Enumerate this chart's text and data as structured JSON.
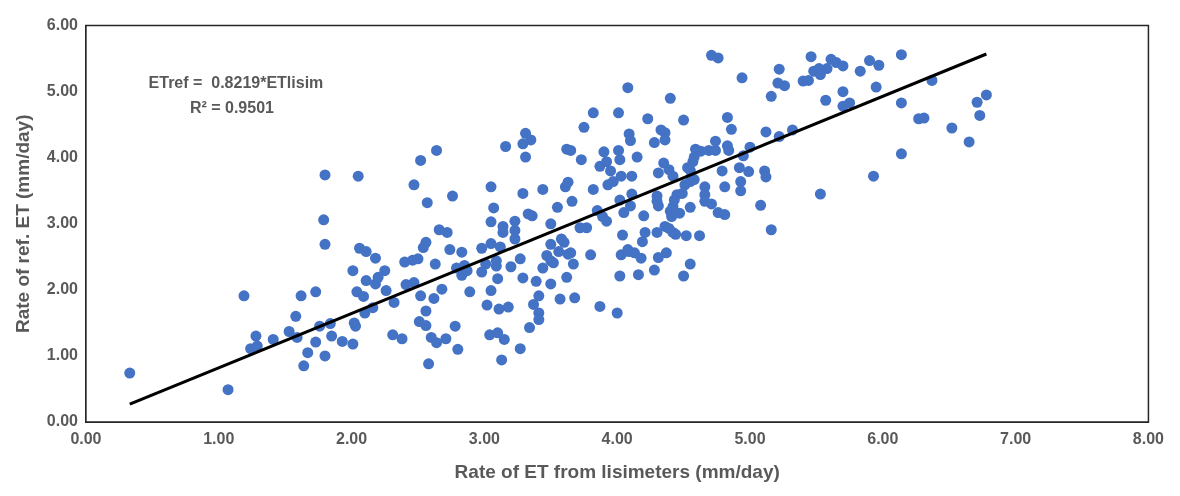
{
  "chart_data": {
    "type": "scatter",
    "xlabel": "Rate of ET from lisimeters (mm/day)",
    "ylabel": "Rate of ref. ET (mm/day)",
    "annotations": [
      "ETref =  0.8219*ETlisim",
      "R² = 0.9501"
    ],
    "xlim": [
      0,
      8
    ],
    "xticks": [
      {
        "value": 0,
        "label": "0.00"
      },
      {
        "value": 1,
        "label": "1.00"
      },
      {
        "value": 2,
        "label": "2.00"
      },
      {
        "value": 3,
        "label": "3.00"
      },
      {
        "value": 4,
        "label": "4.00"
      },
      {
        "value": 5,
        "label": "5.00"
      },
      {
        "value": 6,
        "label": "6.00"
      },
      {
        "value": 7,
        "label": "7.00"
      },
      {
        "value": 8,
        "label": "8.00"
      }
    ],
    "ylim": [
      0,
      6
    ],
    "yticks": [
      {
        "value": 0,
        "label": "0.00"
      },
      {
        "value": 1,
        "label": "1.00"
      },
      {
        "value": 2,
        "label": "2.00"
      },
      {
        "value": 3,
        "label": "3.00"
      },
      {
        "value": 4,
        "label": "4.00"
      },
      {
        "value": 5,
        "label": "5.00"
      },
      {
        "value": 6,
        "label": "6.00"
      }
    ],
    "grid": false,
    "series": [
      {
        "type": "scatter",
        "marker": "circle",
        "color": "#4472c4",
        "x": [
          0.33,
          1.07,
          1.19,
          1.24,
          1.29,
          1.28,
          1.41,
          1.53,
          1.58,
          1.59,
          1.62,
          1.64,
          1.67,
          1.73,
          1.73,
          1.76,
          1.8,
          1.8,
          1.79,
          1.8,
          1.84,
          1.85,
          1.93,
          2.01,
          2.01,
          2.02,
          2.03,
          2.04,
          2.05,
          2.06,
          2.09,
          2.1,
          2.11,
          2.11,
          2.16,
          2.18,
          2.18,
          2.2,
          2.25,
          2.26,
          2.31,
          2.32,
          2.38,
          2.4,
          2.41,
          2.47,
          2.47,
          2.46,
          2.5,
          2.52,
          2.52,
          2.56,
          2.51,
          2.56,
          2.57,
          2.58,
          2.6,
          2.64,
          2.64,
          2.66,
          2.56,
          2.54,
          2.63,
          2.62,
          2.68,
          2.76,
          2.72,
          2.74,
          2.79,
          2.83,
          2.83,
          2.85,
          2.87,
          2.89,
          2.78,
          2.8,
          2.71,
          2.98,
          2.98,
          3.01,
          3.05,
          3.05,
          3.07,
          3.05,
          3.09,
          3.09,
          3.1,
          3.05,
          3.02,
          3.11,
          3.18,
          3.04,
          3.1,
          3.15,
          3.13,
          3.14,
          3.14,
          3.12,
          3.16,
          3.23,
          3.23,
          3.23,
          3.2,
          3.27,
          3.29,
          3.27,
          3.29,
          3.29,
          3.31,
          3.31,
          3.35,
          3.33,
          3.36,
          3.39,
          3.41,
          3.37,
          3.41,
          3.41,
          3.34,
          3.44,
          3.44,
          3.5,
          3.47,
          3.5,
          3.52,
          3.5,
          3.5,
          3.55,
          3.56,
          3.58,
          3.6,
          3.57,
          3.62,
          3.63,
          3.65,
          3.67,
          3.68,
          3.61,
          3.63,
          3.62,
          3.65,
          3.66,
          3.72,
          3.77,
          3.73,
          3.75,
          3.82,
          3.82,
          3.8,
          3.85,
          3.89,
          3.92,
          3.87,
          3.87,
          3.9,
          3.92,
          3.95,
          3.93,
          3.97,
          4.01,
          4.0,
          4.01,
          4.02,
          4.02,
          4.03,
          4.05,
          4.04,
          4.02,
          4.03,
          4.08,
          4.09,
          4.13,
          4.08,
          4.09,
          4.1,
          4.11,
          4.11,
          4.1,
          4.15,
          4.16,
          4.18,
          4.19,
          4.21,
          4.2,
          4.23,
          4.28,
          4.28,
          4.31,
          4.31,
          4.3,
          4.3,
          4.31,
          4.3,
          4.33,
          4.36,
          4.36,
          4.4,
          4.35,
          4.39,
          4.42,
          4.36,
          4.39,
          4.42,
          4.44,
          4.37,
          4.4,
          4.41,
          4.42,
          4.43,
          4.45,
          4.47,
          4.49,
          4.5,
          4.5,
          4.52,
          4.55,
          4.55,
          4.53,
          4.55,
          4.57,
          4.58,
          4.51,
          4.55,
          4.58,
          4.59,
          4.63,
          4.62,
          4.66,
          4.66,
          4.66,
          4.71,
          4.69,
          4.74,
          4.74,
          4.71,
          4.76,
          4.76,
          4.81,
          4.79,
          4.81,
          4.83,
          4.86,
          4.83,
          4.84,
          4.92,
          4.93,
          4.93,
          4.94,
          4.95,
          4.99,
          5.0,
          5.08,
          5.11,
          5.12,
          5.12,
          5.16,
          5.16,
          5.21,
          5.26,
          5.22,
          5.22,
          5.32,
          5.46,
          5.4,
          5.44,
          5.48,
          5.52,
          5.53,
          5.58,
          5.57,
          5.53,
          5.61,
          5.65,
          5.7,
          5.7,
          5.7,
          5.75,
          5.83,
          5.9,
          5.97,
          5.95,
          5.93,
          6.14,
          6.14,
          6.14,
          6.27,
          6.31,
          6.37,
          6.52,
          6.65,
          6.71,
          6.73,
          6.78
        ],
        "values": [
          0.74,
          0.49,
          1.91,
          1.11,
          1.15,
          1.3,
          1.25,
          1.37,
          1.6,
          1.28,
          1.91,
          0.85,
          1.05,
          1.21,
          1.97,
          1.45,
          1.0,
          3.74,
          3.06,
          2.69,
          1.49,
          1.3,
          1.22,
          1.18,
          2.29,
          1.5,
          1.45,
          1.97,
          3.72,
          2.63,
          1.9,
          1.65,
          2.58,
          2.14,
          1.73,
          2.48,
          2.09,
          2.19,
          2.29,
          1.99,
          1.32,
          1.81,
          1.26,
          2.42,
          2.08,
          2.11,
          3.59,
          2.45,
          2.47,
          3.96,
          1.91,
          1.68,
          1.52,
          1.46,
          3.32,
          0.88,
          1.28,
          1.2,
          4.11,
          2.91,
          2.72,
          2.64,
          2.39,
          1.87,
          2.01,
          3.42,
          2.87,
          2.61,
          2.33,
          2.57,
          2.22,
          2.37,
          2.29,
          1.97,
          1.45,
          1.1,
          1.26,
          2.63,
          2.27,
          2.39,
          3.56,
          3.03,
          3.24,
          2.7,
          2.44,
          2.36,
          2.17,
          1.99,
          1.77,
          1.71,
          1.74,
          1.32,
          1.35,
          1.25,
          0.94,
          2.96,
          2.87,
          2.65,
          4.17,
          3.04,
          2.9,
          2.77,
          2.35,
          2.47,
          2.18,
          1.11,
          3.46,
          4.21,
          4.37,
          4.01,
          4.27,
          3.15,
          3.12,
          2.13,
          1.91,
          1.78,
          1.65,
          1.55,
          1.43,
          2.33,
          3.52,
          3.0,
          2.52,
          2.44,
          2.41,
          2.69,
          2.09,
          3.25,
          2.58,
          2.77,
          2.72,
          1.86,
          2.19,
          2.54,
          2.56,
          2.39,
          1.88,
          3.56,
          3.63,
          4.13,
          4.11,
          3.34,
          2.94,
          2.94,
          3.97,
          4.46,
          4.68,
          3.52,
          2.53,
          3.2,
          3.11,
          3.04,
          1.75,
          3.87,
          4.09,
          3.94,
          3.8,
          3.59,
          3.64,
          4.68,
          1.65,
          4.11,
          3.97,
          3.36,
          3.72,
          3.17,
          2.83,
          2.21,
          2.53,
          2.61,
          2.58,
          2.56,
          5.06,
          4.36,
          4.26,
          3.72,
          3.45,
          3.27,
          4.01,
          2.23,
          2.48,
          2.73,
          2.87,
          3.12,
          4.59,
          4.23,
          2.3,
          2.49,
          3.77,
          3.42,
          3.34,
          3.27,
          2.87,
          4.42,
          4.38,
          4.27,
          4.9,
          3.92,
          3.82,
          3.72,
          2.96,
          2.93,
          2.87,
          2.84,
          2.56,
          3.19,
          3.11,
          3.26,
          3.36,
          3.44,
          3.16,
          3.46,
          4.57,
          2.21,
          2.82,
          2.39,
          3.25,
          3.85,
          3.81,
          3.94,
          4.01,
          3.59,
          3.64,
          3.67,
          4.13,
          4.1,
          2.82,
          3.56,
          3.44,
          3.34,
          3.3,
          4.11,
          4.25,
          4.11,
          5.55,
          5.51,
          3.17,
          3.14,
          3.8,
          3.56,
          4.61,
          4.43,
          4.18,
          4.11,
          3.85,
          3.64,
          3.5,
          5.21,
          4.03,
          3.79,
          4.16,
          3.28,
          3.8,
          3.71,
          4.39,
          4.93,
          2.91,
          5.13,
          5.09,
          5.34,
          4.32,
          4.42,
          5.53,
          5.16,
          5.17,
          5.31,
          5.35,
          5.26,
          5.35,
          4.87,
          3.45,
          5.49,
          5.44,
          5.39,
          5.0,
          4.78,
          4.83,
          5.31,
          5.47,
          5.4,
          5.07,
          3.72,
          5.56,
          4.83,
          4.06,
          4.59,
          4.6,
          5.17,
          4.45,
          4.24,
          4.84,
          4.64,
          4.95
        ]
      },
      {
        "type": "line",
        "marker": "none",
        "color": "#000000",
        "x": [
          0.33,
          6.78
        ],
        "values": [
          0.27,
          5.57
        ]
      }
    ]
  }
}
